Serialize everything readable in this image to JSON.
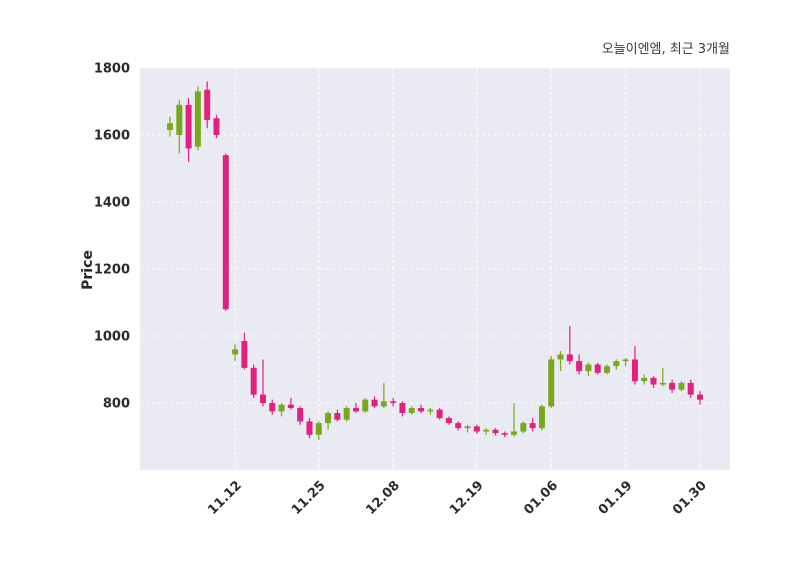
{
  "chart_data": {
    "type": "candlestick",
    "title": "오늘이엔엠, 최근 3개월",
    "ylabel": "Price",
    "ylim": [
      600,
      1800
    ],
    "yticks": [
      800,
      1000,
      1200,
      1400,
      1600,
      1800
    ],
    "xticks": [
      {
        "index": 7,
        "label": "11.12"
      },
      {
        "index": 16,
        "label": "11.25"
      },
      {
        "index": 24,
        "label": "12.08"
      },
      {
        "index": 33,
        "label": "12.19"
      },
      {
        "index": 41,
        "label": "01.06"
      },
      {
        "index": 49,
        "label": "01.19"
      },
      {
        "index": 57,
        "label": "01.30"
      }
    ],
    "grid": true,
    "legend": "none",
    "plot_bg": "#eaeaf2",
    "grid_color": "#ffffff",
    "up_color": "#79a81e",
    "down_color": "#e0217f",
    "candles_format": [
      "open",
      "high",
      "low",
      "close"
    ],
    "candles": [
      [
        1615,
        1655,
        1595,
        1635
      ],
      [
        1600,
        1705,
        1545,
        1690
      ],
      [
        1690,
        1710,
        1520,
        1560
      ],
      [
        1565,
        1745,
        1555,
        1730
      ],
      [
        1735,
        1760,
        1620,
        1645
      ],
      [
        1650,
        1660,
        1590,
        1600
      ],
      [
        1540,
        1545,
        1075,
        1080
      ],
      [
        945,
        975,
        925,
        960
      ],
      [
        985,
        1010,
        900,
        905
      ],
      [
        905,
        915,
        815,
        825
      ],
      [
        825,
        930,
        790,
        800
      ],
      [
        800,
        810,
        765,
        775
      ],
      [
        775,
        800,
        760,
        795
      ],
      [
        795,
        815,
        780,
        785
      ],
      [
        785,
        790,
        735,
        745
      ],
      [
        745,
        755,
        695,
        705
      ],
      [
        705,
        745,
        690,
        740
      ],
      [
        740,
        775,
        720,
        770
      ],
      [
        770,
        780,
        745,
        750
      ],
      [
        750,
        790,
        745,
        785
      ],
      [
        785,
        800,
        770,
        775
      ],
      [
        775,
        815,
        770,
        810
      ],
      [
        810,
        820,
        785,
        790
      ],
      [
        790,
        860,
        785,
        805
      ],
      [
        805,
        815,
        790,
        800
      ],
      [
        800,
        805,
        760,
        770
      ],
      [
        770,
        790,
        765,
        785
      ],
      [
        785,
        795,
        770,
        775
      ],
      [
        775,
        785,
        765,
        780
      ],
      [
        780,
        785,
        750,
        755
      ],
      [
        755,
        760,
        735,
        740
      ],
      [
        740,
        745,
        718,
        725
      ],
      [
        725,
        735,
        712,
        730
      ],
      [
        730,
        735,
        708,
        715
      ],
      [
        715,
        725,
        705,
        720
      ],
      [
        720,
        725,
        703,
        710
      ],
      [
        710,
        715,
        698,
        705
      ],
      [
        705,
        800,
        700,
        715
      ],
      [
        715,
        745,
        710,
        740
      ],
      [
        740,
        755,
        715,
        725
      ],
      [
        725,
        795,
        718,
        790
      ],
      [
        790,
        940,
        785,
        930
      ],
      [
        930,
        955,
        895,
        945
      ],
      [
        945,
        1030,
        915,
        925
      ],
      [
        925,
        945,
        885,
        895
      ],
      [
        895,
        920,
        880,
        915
      ],
      [
        915,
        920,
        885,
        890
      ],
      [
        890,
        915,
        885,
        910
      ],
      [
        910,
        930,
        900,
        925
      ],
      [
        925,
        935,
        910,
        930
      ],
      [
        930,
        970,
        855,
        865
      ],
      [
        865,
        885,
        855,
        875
      ],
      [
        875,
        880,
        845,
        855
      ],
      [
        855,
        905,
        850,
        860
      ],
      [
        860,
        870,
        830,
        840
      ],
      [
        840,
        865,
        835,
        860
      ],
      [
        860,
        870,
        815,
        825
      ],
      [
        825,
        835,
        795,
        810
      ]
    ]
  }
}
